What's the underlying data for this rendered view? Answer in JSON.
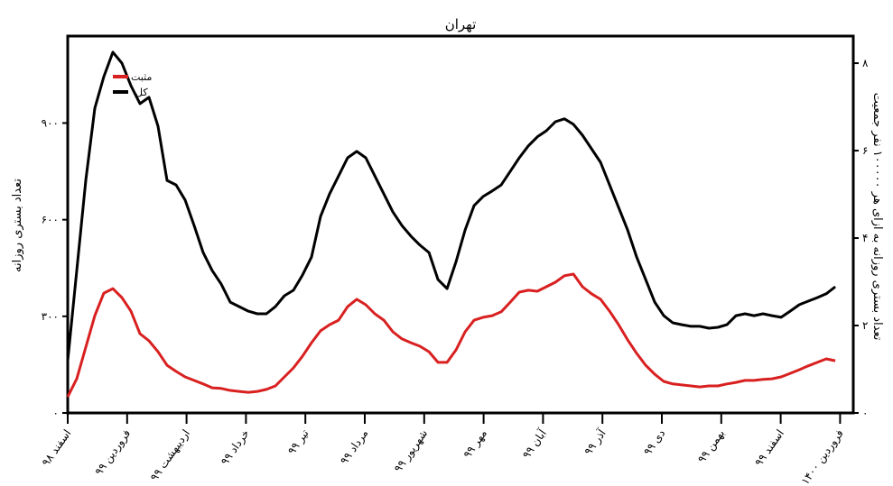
{
  "chart_data": {
    "type": "line",
    "title": "تهران",
    "ylabel": "تعداد بستری روزانه",
    "ylabel_right": "تعداد بستری روزانه به ازای هر ۱۰۰۰۰۰ نفر جمعیت",
    "ylim": [
      0,
      1170
    ],
    "ylim_right": [
      0,
      8.62
    ],
    "yticks": [
      {
        "value": 0,
        "label": "۰"
      },
      {
        "value": 300,
        "label": "۳۰۰"
      },
      {
        "value": 600,
        "label": "۶۰۰"
      },
      {
        "value": 900,
        "label": "۹۰۰"
      }
    ],
    "yticks_right": [
      {
        "value": 0,
        "label": "۰"
      },
      {
        "value": 2,
        "label": "۲"
      },
      {
        "value": 4,
        "label": "۴"
      },
      {
        "value": 6,
        "label": "۶"
      },
      {
        "value": 8,
        "label": "۸"
      }
    ],
    "xtick_labels": [
      "اسفند ۹۸",
      "فروردین ۹۹",
      "اردیبهشت ۹۹",
      "خرداد ۹۹",
      "تیر ۹۹",
      "مرداد ۹۹",
      "شهریور ۹۹",
      "مهر ۹۹",
      "آبان ۹۹",
      "آذر ۹۹",
      "دی ۹۹",
      "بهمن ۹۹",
      "اسفند ۹۹",
      "فروردین ۱۴۰۰"
    ],
    "x_unit": "months from start of اسفند ۹۸ (tick index)",
    "x_step": 0.152,
    "grid": false,
    "legend_position": "top-left",
    "series": [
      {
        "name": "مثبت",
        "color": "#d92020",
        "values": [
          50,
          106,
          204,
          302,
          372,
          386,
          358,
          316,
          246,
          224,
          190,
          148,
          129,
          112,
          101,
          90,
          78,
          76,
          70,
          67,
          64,
          67,
          73,
          84,
          112,
          140,
          176,
          218,
          255,
          274,
          288,
          330,
          353,
          336,
          308,
          288,
          252,
          230,
          218,
          207,
          190,
          157,
          157,
          196,
          252,
          288,
          297,
          302,
          314,
          344,
          375,
          381,
          378,
          392,
          406,
          426,
          431,
          392,
          370,
          353,
          316,
          274,
          227,
          185,
          148,
          120,
          98,
          90,
          87,
          84,
          81,
          84,
          84,
          90,
          95,
          101,
          101,
          104,
          106,
          112,
          123,
          134,
          146,
          157,
          168,
          162
        ]
      },
      {
        "name": "کل",
        "color": "#000000",
        "values": [
          162,
          442,
          722,
          946,
          1044,
          1120,
          1086,
          1016,
          960,
          980,
          890,
          722,
          708,
          661,
          582,
          498,
          442,
          400,
          344,
          330,
          316,
          308,
          308,
          330,
          364,
          381,
          428,
          484,
          610,
          680,
          736,
          792,
          812,
          792,
          736,
          680,
          624,
          582,
          549,
          521,
          498,
          414,
          386,
          470,
          568,
          644,
          672,
          689,
          708,
          750,
          792,
          829,
          857,
          876,
          904,
          913,
          896,
          862,
          820,
          778,
          708,
          638,
          568,
          484,
          414,
          344,
          302,
          280,
          274,
          269,
          269,
          263,
          266,
          274,
          302,
          308,
          302,
          308,
          302,
          297,
          316,
          336,
          347,
          358,
          370,
          392
        ]
      }
    ]
  }
}
